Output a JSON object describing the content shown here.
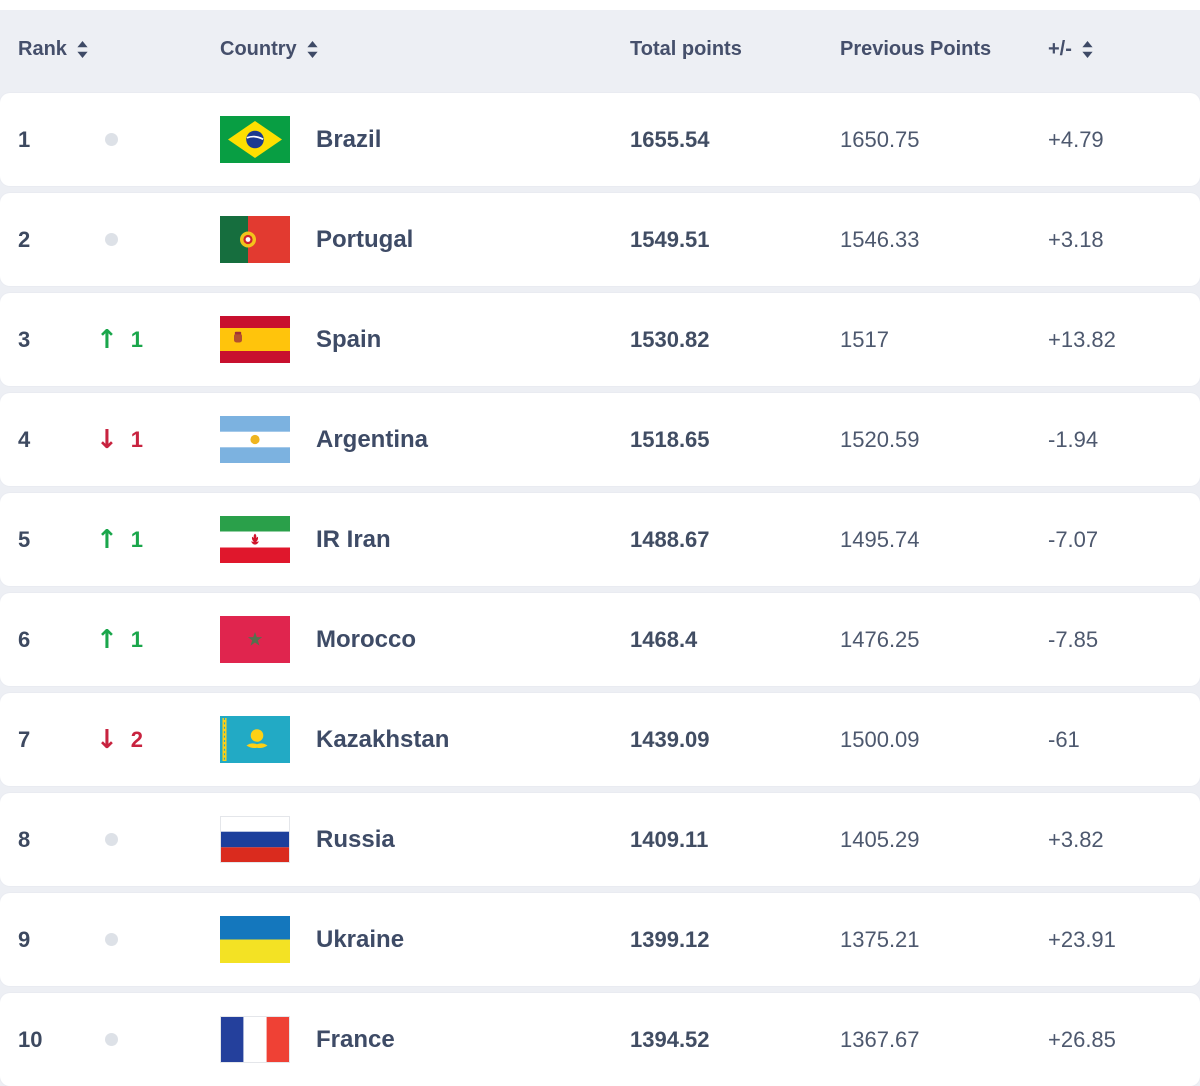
{
  "colors": {
    "up_green": "#1aa64b",
    "down_red": "#c8233f",
    "header_band": "#edeff4",
    "header_text": "#454f6b",
    "country_text": "#3e4b66",
    "number_text": "#414d63",
    "no_change_dot": "#dde1e7"
  },
  "header": {
    "columns": [
      {
        "id": "rank",
        "label": "Rank",
        "sortable": true
      },
      {
        "id": "country",
        "label": "Country",
        "sortable": true
      },
      {
        "id": "total-points",
        "label": "Total points",
        "sortable": false
      },
      {
        "id": "previous-points",
        "label": "Previous Points",
        "sortable": false
      },
      {
        "id": "plus-minus",
        "label": "+/-",
        "sortable": true
      }
    ]
  },
  "rows": [
    {
      "rank": "1",
      "change": {
        "direction": "none",
        "places": ""
      },
      "country": "Brazil",
      "flag": "brazil",
      "total_points": "1655.54",
      "previous_points": "1650.75",
      "plus_minus": "+4.79"
    },
    {
      "rank": "2",
      "change": {
        "direction": "none",
        "places": ""
      },
      "country": "Portugal",
      "flag": "portugal",
      "total_points": "1549.51",
      "previous_points": "1546.33",
      "plus_minus": "+3.18"
    },
    {
      "rank": "3",
      "change": {
        "direction": "up",
        "places": "1"
      },
      "country": "Spain",
      "flag": "spain",
      "total_points": "1530.82",
      "previous_points": "1517",
      "plus_minus": "+13.82"
    },
    {
      "rank": "4",
      "change": {
        "direction": "down",
        "places": "1"
      },
      "country": "Argentina",
      "flag": "argentina",
      "total_points": "1518.65",
      "previous_points": "1520.59",
      "plus_minus": "-1.94"
    },
    {
      "rank": "5",
      "change": {
        "direction": "up",
        "places": "1"
      },
      "country": "IR Iran",
      "flag": "iran",
      "total_points": "1488.67",
      "previous_points": "1495.74",
      "plus_minus": "-7.07"
    },
    {
      "rank": "6",
      "change": {
        "direction": "up",
        "places": "1"
      },
      "country": "Morocco",
      "flag": "morocco",
      "total_points": "1468.4",
      "previous_points": "1476.25",
      "plus_minus": "-7.85"
    },
    {
      "rank": "7",
      "change": {
        "direction": "down",
        "places": "2"
      },
      "country": "Kazakhstan",
      "flag": "kazakhstan",
      "total_points": "1439.09",
      "previous_points": "1500.09",
      "plus_minus": "-61"
    },
    {
      "rank": "8",
      "change": {
        "direction": "none",
        "places": ""
      },
      "country": "Russia",
      "flag": "russia",
      "total_points": "1409.11",
      "previous_points": "1405.29",
      "plus_minus": "+3.82"
    },
    {
      "rank": "9",
      "change": {
        "direction": "none",
        "places": ""
      },
      "country": "Ukraine",
      "flag": "ukraine",
      "total_points": "1399.12",
      "previous_points": "1375.21",
      "plus_minus": "+23.91"
    },
    {
      "rank": "10",
      "change": {
        "direction": "none",
        "places": ""
      },
      "country": "France",
      "flag": "france",
      "total_points": "1394.52",
      "previous_points": "1367.67",
      "plus_minus": "+26.85"
    }
  ],
  "icons": {
    "sort": "sort-arrows",
    "up": "up-arrow",
    "down": "down-arrow",
    "none": "no-change-dot"
  }
}
